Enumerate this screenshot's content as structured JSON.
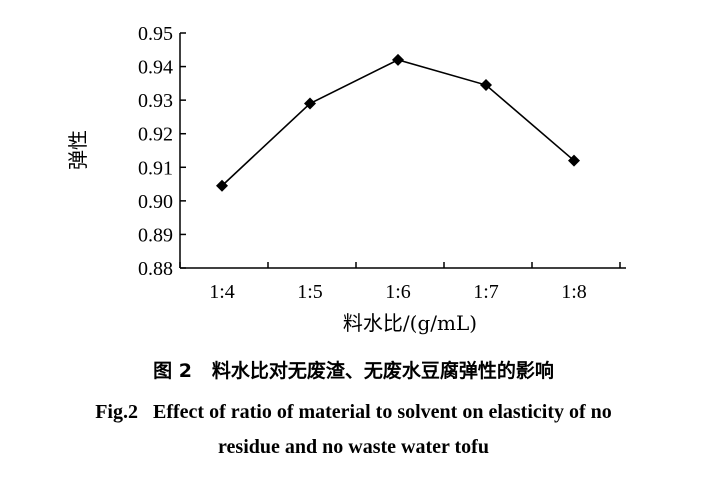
{
  "chart_data": {
    "type": "line",
    "categories": [
      "1:4",
      "1:5",
      "1:6",
      "1:7",
      "1:8"
    ],
    "values": [
      0.9045,
      0.929,
      0.942,
      0.9345,
      0.912
    ],
    "xlabel": "料水比/(g/mL)",
    "ylabel": "弹性",
    "ylim": [
      0.88,
      0.95
    ],
    "yticks": [
      "0.88",
      "0.89",
      "0.90",
      "0.91",
      "0.92",
      "0.93",
      "0.94",
      "0.95"
    ],
    "grid": false,
    "marker": "diamond",
    "line_color": "#000000"
  },
  "caption": {
    "cn": "图 2   料水比对无废渣、无废水豆腐弹性的影响",
    "en_line1": "Fig.2   Effect of ratio of material to solvent on elasticity of no",
    "en_line2": "residue and no waste water tofu"
  }
}
